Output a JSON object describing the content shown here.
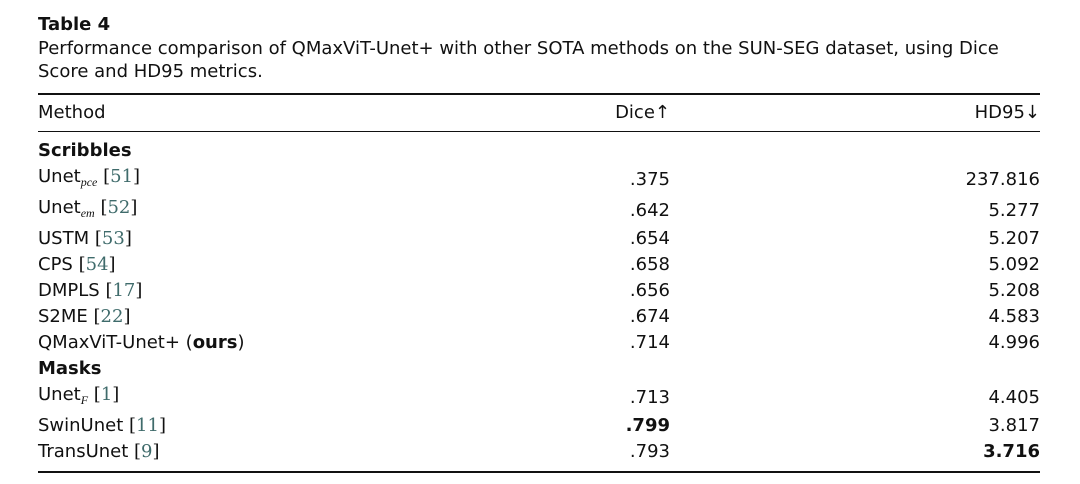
{
  "table": {
    "label": "Table 4",
    "caption": "Performance comparison of QMaxViT-Unet+ with other SOTA methods on the SUN-SEG dataset, using Dice Score and HD95 metrics.",
    "headers": {
      "method": "Method",
      "dice": "Dice",
      "dice_arrow": "↑",
      "hd95": "HD95",
      "hd95_arrow": "↓"
    },
    "sections": [
      {
        "title": "Scribbles",
        "rows": [
          {
            "method": "Unet",
            "sub": "pce",
            "ref": "51",
            "dice": ".375",
            "hd95": "237.816"
          },
          {
            "method": "Unet",
            "sub": "em",
            "ref": "52",
            "dice": ".642",
            "hd95": "5.277"
          },
          {
            "method": "USTM",
            "ref": "53",
            "dice": ".654",
            "hd95": "5.207"
          },
          {
            "method": "CPS",
            "ref": "54",
            "dice": ".658",
            "hd95": "5.092"
          },
          {
            "method": "DMPLS",
            "ref": "17",
            "dice": ".656",
            "hd95": "5.208"
          },
          {
            "method": "S2ME",
            "ref": "22",
            "dice": ".674",
            "hd95": "4.583"
          },
          {
            "method": "QMaxViT-Unet+",
            "ours": "ours",
            "dice": ".714",
            "hd95": "4.996"
          }
        ]
      },
      {
        "title": "Masks",
        "rows": [
          {
            "method": "Unet",
            "sub": "F",
            "ref": "1",
            "dice": ".713",
            "hd95": "4.405"
          },
          {
            "method": "SwinUnet",
            "ref": "11",
            "dice": ".799",
            "hd95": "3.817"
          },
          {
            "method": "TransUnet",
            "ref": "9",
            "dice": ".793",
            "hd95": "3.716"
          }
        ]
      }
    ]
  }
}
